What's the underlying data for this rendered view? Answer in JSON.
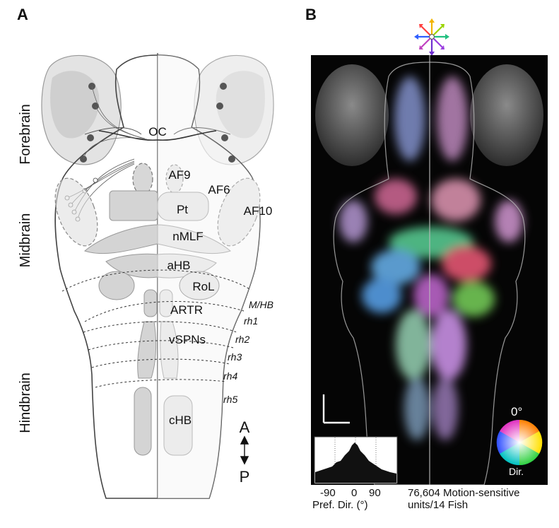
{
  "panel_a": {
    "letter": "A",
    "sections": [
      "Forebrain",
      "Midbrain",
      "Hindbrain"
    ],
    "regions": [
      "OC",
      "AF9",
      "AF6",
      "Pt",
      "AF10",
      "nMLF",
      "aHB",
      "RoL",
      "ARTR",
      "vSPNs",
      "cHB"
    ],
    "boundaries": [
      "M/HB",
      "rh1",
      "rh2",
      "rh3",
      "rh4",
      "rh5"
    ],
    "axis": {
      "anterior": "A",
      "posterior": "P"
    }
  },
  "panel_b": {
    "letter": "B",
    "color_wheel_label": "0°",
    "color_wheel_sublabel": "Dir.",
    "hist_ticks": [
      "-90",
      "0",
      "90"
    ],
    "hist_xlabel": "Pref. Dir. (°)",
    "caption_line1": "76,604 Motion-sensitive",
    "caption_line2": "units/14 Fish"
  },
  "colors": {
    "region_fill": "#d4d4d4",
    "outline": "#444444",
    "background_b": "#050505"
  }
}
